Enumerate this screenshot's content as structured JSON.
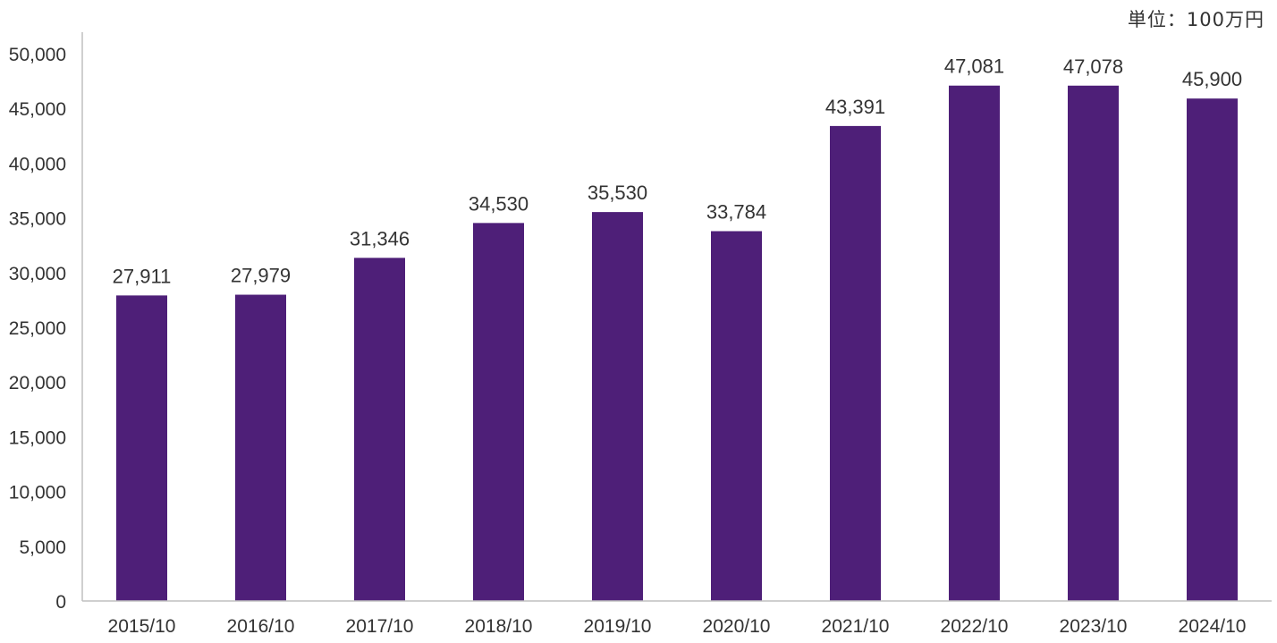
{
  "unit_label": "単位：100万円",
  "chart_data": {
    "type": "bar",
    "categories": [
      "2015/10",
      "2016/10",
      "2017/10",
      "2018/10",
      "2019/10",
      "2020/10",
      "2021/10",
      "2022/10",
      "2023/10",
      "2024/10"
    ],
    "values": [
      27911,
      27979,
      31346,
      34530,
      35530,
      33784,
      43391,
      47081,
      47078,
      45900
    ],
    "value_labels": [
      "27,911",
      "27,979",
      "31,346",
      "34,530",
      "35,530",
      "33,784",
      "43,391",
      "47,081",
      "47,078",
      "45,900"
    ],
    "ylim": [
      0,
      50000
    ],
    "yticks": [
      0,
      5000,
      10000,
      15000,
      20000,
      25000,
      30000,
      35000,
      40000,
      45000,
      50000
    ],
    "ytick_labels": [
      "0",
      "5,000",
      "10,000",
      "15,000",
      "20,000",
      "25,000",
      "30,000",
      "35,000",
      "40,000",
      "45,000",
      "50,000"
    ],
    "title": "",
    "xlabel": "",
    "ylabel": "",
    "grid": false,
    "bar_color": "#4e1f78"
  }
}
